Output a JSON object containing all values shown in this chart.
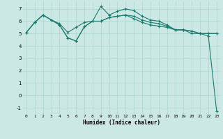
{
  "xlabel": "Humidex (Indice chaleur)",
  "bg_color": "#cce8e4",
  "line_color": "#1a7a6e",
  "grid_color": "#aad4cc",
  "xlim": [
    -0.5,
    23.5
  ],
  "ylim": [
    -1.5,
    7.6
  ],
  "xticks": [
    0,
    1,
    2,
    3,
    4,
    5,
    6,
    7,
    8,
    9,
    10,
    11,
    12,
    13,
    14,
    15,
    16,
    17,
    18,
    19,
    20,
    21,
    22,
    23
  ],
  "yticks": [
    -1,
    0,
    1,
    2,
    3,
    4,
    5,
    6,
    7
  ],
  "series1_x": [
    0,
    1,
    2,
    3,
    4,
    5,
    6,
    7,
    8,
    9,
    10,
    11,
    12,
    13,
    14,
    15,
    16,
    17,
    18,
    19,
    20,
    21,
    22,
    23
  ],
  "series1_y": [
    5.1,
    5.9,
    6.5,
    6.1,
    5.7,
    4.65,
    4.4,
    5.55,
    6.0,
    7.2,
    6.5,
    6.8,
    7.0,
    6.85,
    6.4,
    6.1,
    6.0,
    5.7,
    5.3,
    5.3,
    5.0,
    5.0,
    4.8,
    -1.3
  ],
  "series2_x": [
    0,
    1,
    2,
    3,
    4,
    5,
    6,
    7,
    8,
    9,
    10,
    11,
    12,
    13,
    14,
    15,
    16,
    17,
    18,
    19,
    20,
    21,
    22,
    23
  ],
  "series2_y": [
    5.1,
    5.9,
    6.5,
    6.1,
    5.8,
    5.1,
    5.5,
    5.9,
    6.0,
    6.0,
    6.3,
    6.4,
    6.5,
    6.4,
    6.1,
    5.9,
    5.8,
    5.6,
    5.3,
    5.3,
    5.2,
    5.0,
    5.0,
    5.0
  ],
  "series3_x": [
    0,
    1,
    2,
    3,
    4,
    5,
    6,
    7,
    8,
    9,
    10,
    11,
    12,
    13,
    14,
    15,
    16,
    17,
    18,
    19,
    20,
    21,
    22,
    23
  ],
  "series3_y": [
    5.1,
    5.9,
    6.5,
    6.1,
    5.7,
    4.65,
    4.4,
    5.55,
    6.0,
    6.0,
    6.3,
    6.4,
    6.5,
    6.2,
    5.9,
    5.7,
    5.6,
    5.5,
    5.3,
    5.3,
    5.2,
    5.0,
    5.0,
    5.0
  ]
}
